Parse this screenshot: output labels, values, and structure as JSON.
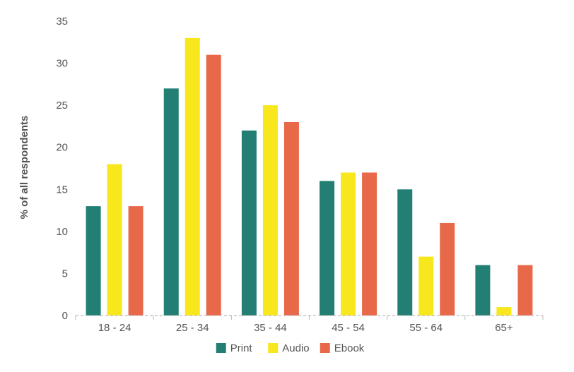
{
  "chart_data": {
    "type": "bar",
    "title": "",
    "xlabel": "",
    "ylabel": "% of all respondents",
    "categories": [
      "18 - 24",
      "25 - 34",
      "35 - 44",
      "45 - 54",
      "55 - 64",
      "65+"
    ],
    "series": [
      {
        "name": "Print",
        "color": "#237f73",
        "values": [
          13,
          27,
          22,
          16,
          15,
          6
        ]
      },
      {
        "name": "Audio",
        "color": "#f8e71c",
        "values": [
          18,
          33,
          25,
          17,
          7,
          1
        ]
      },
      {
        "name": "Ebook",
        "color": "#e8694a",
        "values": [
          13,
          31,
          23,
          17,
          11,
          6
        ]
      }
    ],
    "ylim": [
      0,
      35
    ],
    "yticks": [
      0,
      5,
      10,
      15,
      20,
      25,
      30,
      35
    ],
    "grid": false,
    "legend_position": "bottom-center",
    "baseline_style": "dashed"
  }
}
